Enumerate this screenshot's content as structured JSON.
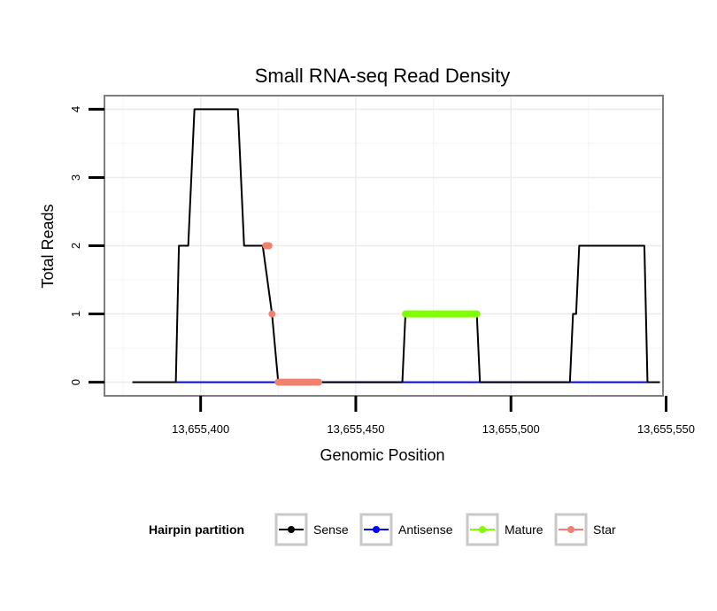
{
  "chart_data": {
    "type": "line",
    "title": "Small RNA-seq Read Density",
    "xlabel": "Genomic Position",
    "ylabel": "Total Reads",
    "xlim": [
      13655369,
      13655549
    ],
    "ylim": [
      -0.2,
      4.2
    ],
    "x_ticks": [
      13655400,
      13655450,
      13655500,
      13655550
    ],
    "x_tick_labels": [
      "13,655,400",
      "13,655,450",
      "13,655,500",
      "13,655,550"
    ],
    "y_ticks": [
      0,
      1,
      2,
      3,
      4
    ],
    "y_tick_labels": [
      "0",
      "1",
      "2",
      "3",
      "4"
    ],
    "grid": true,
    "legend": {
      "title": "Hairpin partition",
      "position": "bottom",
      "entries": [
        {
          "name": "Sense",
          "color": "#000000"
        },
        {
          "name": "Antisense",
          "color": "#0000ff"
        },
        {
          "name": "Mature",
          "color": "#7fff00"
        },
        {
          "name": "Star",
          "color": "#f08070"
        }
      ]
    },
    "series": [
      {
        "name": "Sense",
        "color": "#000000",
        "style": "line",
        "x": [
          13655378,
          13655392,
          13655393,
          13655395,
          13655396,
          13655398,
          13655412,
          13655414,
          13655418,
          13655420,
          13655423,
          13655425,
          13655465,
          13655466,
          13655489,
          13655490,
          13655510,
          13655519,
          13655520,
          13655521,
          13655522,
          13655523,
          13655543,
          13655544,
          13655548
        ],
        "values": [
          0,
          0,
          2,
          2,
          2,
          4,
          4,
          2,
          2,
          2,
          1,
          0,
          0,
          1,
          1,
          0,
          0,
          0,
          1,
          1,
          2,
          2,
          2,
          0,
          0
        ]
      },
      {
        "name": "Antisense",
        "color": "#0000ff",
        "style": "line",
        "x": [
          13655392,
          13655544
        ],
        "values": [
          0,
          0
        ]
      },
      {
        "name": "Mature",
        "color": "#7fff00",
        "style": "points",
        "x": [
          13655466,
          13655466.5,
          13655467,
          13655467.5,
          13655468,
          13655468.5,
          13655469,
          13655469.5,
          13655470,
          13655470.5,
          13655471,
          13655471.5,
          13655472,
          13655472.5,
          13655473,
          13655473.5,
          13655474,
          13655474.5,
          13655475,
          13655475.5,
          13655476,
          13655476.5,
          13655477,
          13655477.5,
          13655478,
          13655478.5,
          13655479,
          13655479.5,
          13655480,
          13655480.5,
          13655481,
          13655481.5,
          13655482,
          13655482.5,
          13655483,
          13655483.5,
          13655484,
          13655484.5,
          13655485,
          13655485.5,
          13655486,
          13655486.5,
          13655487,
          13655487.5,
          13655488,
          13655488.5,
          13655489
        ],
        "values": [
          1,
          1,
          1,
          1,
          1,
          1,
          1,
          1,
          1,
          1,
          1,
          1,
          1,
          1,
          1,
          1,
          1,
          1,
          1,
          1,
          1,
          1,
          1,
          1,
          1,
          1,
          1,
          1,
          1,
          1,
          1,
          1,
          1,
          1,
          1,
          1,
          1,
          1,
          1,
          1,
          1,
          1,
          1,
          1,
          1,
          1,
          1
        ]
      },
      {
        "name": "Star",
        "color": "#f08070",
        "style": "points",
        "x": [
          13655421,
          13655421.5,
          13655422,
          13655423,
          13655425,
          13655425.5,
          13655426,
          13655426.5,
          13655427,
          13655427.5,
          13655428,
          13655428.5,
          13655429,
          13655429.5,
          13655430,
          13655430.5,
          13655431,
          13655431.5,
          13655432,
          13655432.5,
          13655433,
          13655433.5,
          13655434,
          13655434.5,
          13655435,
          13655435.5,
          13655436,
          13655436.5,
          13655437,
          13655437.5,
          13655438
        ],
        "values": [
          2,
          2,
          2,
          1,
          0,
          0,
          0,
          0,
          0,
          0,
          0,
          0,
          0,
          0,
          0,
          0,
          0,
          0,
          0,
          0,
          0,
          0,
          0,
          0,
          0,
          0,
          0,
          0,
          0,
          0,
          0
        ]
      }
    ]
  }
}
